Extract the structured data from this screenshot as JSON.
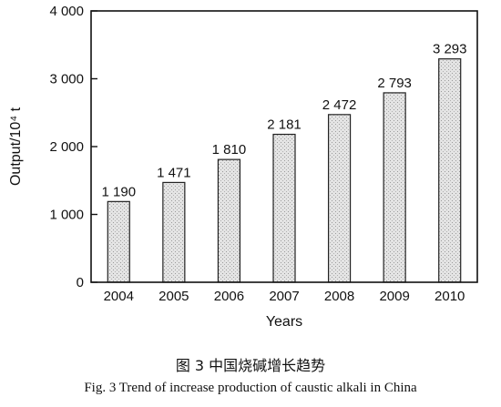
{
  "chart_data": {
    "type": "bar",
    "categories": [
      "2004",
      "2005",
      "2006",
      "2007",
      "2008",
      "2009",
      "2010"
    ],
    "values": [
      1190,
      1471,
      1810,
      2181,
      2472,
      2793,
      3293
    ],
    "value_labels": [
      "1 190",
      "1 471",
      "1 810",
      "2 181",
      "2 472",
      "2 793",
      "3 293"
    ],
    "ylim": [
      0,
      4000
    ],
    "yticks": [
      0,
      1000,
      2000,
      3000,
      4000
    ],
    "ytick_labels": [
      "0",
      "1 000",
      "2 000",
      "3 000",
      "4 000"
    ],
    "xlabel": "Years",
    "ylabel": "Output/10⁴ t",
    "grid": false,
    "bar_color": "#d9d9d9"
  },
  "caption_cn": "图 3  中国烧碱增长趋势",
  "caption_en": "Fig. 3   Trend of increase production of caustic alkali in China"
}
